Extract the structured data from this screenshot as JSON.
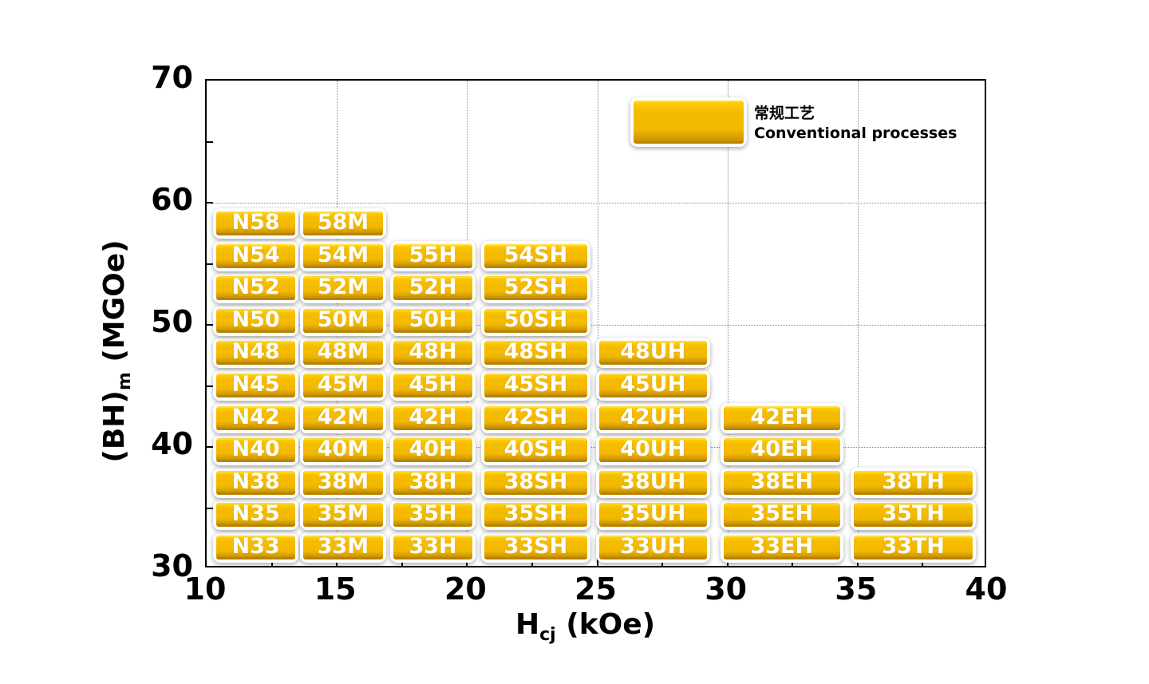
{
  "chart_data": {
    "type": "table",
    "title": "",
    "xlabel": "H",
    "xlabel_sub": "cj",
    "xlabel_unit": " (kOe)",
    "ylabel": "(BH)",
    "ylabel_sub": "m",
    "ylabel_unit": " (MGOe)",
    "xlim": [
      10,
      40
    ],
    "ylim": [
      30,
      70
    ],
    "x_ticks": [
      "10",
      "15",
      "20",
      "25",
      "30",
      "35",
      "40"
    ],
    "y_ticks": [
      "30",
      "40",
      "50",
      "60",
      "70"
    ],
    "grid": true,
    "legend": {
      "position": "top-right",
      "label_cn": "常规工艺",
      "label_en": "Conventional processes",
      "color": "#F5BD00"
    },
    "series": [
      {
        "name": "N",
        "grades": [
          "N33",
          "N35",
          "N38",
          "N40",
          "N42",
          "N45",
          "N48",
          "N50",
          "N52",
          "N54",
          "N58"
        ],
        "bh": [
          33,
          35,
          38,
          40,
          42,
          45,
          48,
          50,
          52,
          54,
          58
        ]
      },
      {
        "name": "M",
        "grades": [
          "33M",
          "35M",
          "38M",
          "40M",
          "42M",
          "45M",
          "48M",
          "50M",
          "52M",
          "54M",
          "58M"
        ],
        "bh": [
          33,
          35,
          38,
          40,
          42,
          45,
          48,
          50,
          52,
          54,
          58
        ]
      },
      {
        "name": "H",
        "grades": [
          "33H",
          "35H",
          "38H",
          "40H",
          "42H",
          "45H",
          "48H",
          "50H",
          "52H",
          "55H"
        ],
        "bh": [
          33,
          35,
          38,
          40,
          42,
          45,
          48,
          50,
          52,
          55
        ]
      },
      {
        "name": "SH",
        "grades": [
          "33SH",
          "35SH",
          "38SH",
          "40SH",
          "42SH",
          "45SH",
          "48SH",
          "50SH",
          "52SH",
          "54SH"
        ],
        "bh": [
          33,
          35,
          38,
          40,
          42,
          45,
          48,
          50,
          52,
          54
        ]
      },
      {
        "name": "UH",
        "grades": [
          "33UH",
          "35UH",
          "38UH",
          "40UH",
          "42UH",
          "45UH",
          "48UH"
        ],
        "bh": [
          33,
          35,
          38,
          40,
          42,
          45,
          48
        ]
      },
      {
        "name": "EH",
        "grades": [
          "33EH",
          "35EH",
          "38EH",
          "40EH",
          "42EH"
        ],
        "bh": [
          33,
          35,
          38,
          40,
          42
        ]
      },
      {
        "name": "TH",
        "grades": [
          "33TH",
          "35TH",
          "38TH"
        ],
        "bh": [
          33,
          35,
          38
        ]
      }
    ]
  }
}
